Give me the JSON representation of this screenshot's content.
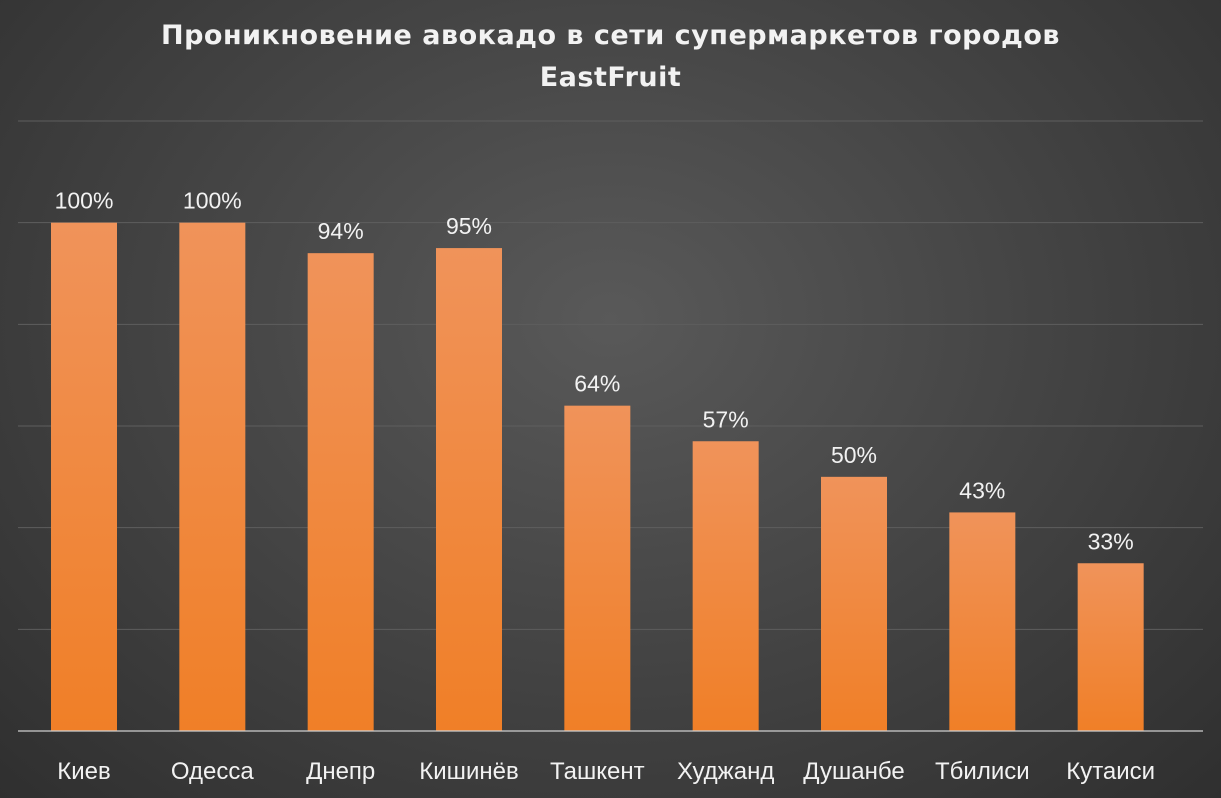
{
  "chart_data": {
    "type": "bar",
    "title": "Проникновение авокадо в сети супермаркетов городов",
    "subtitle": "EastFruit",
    "categories": [
      "Киев",
      "Одесса",
      "Днепр",
      "Кишинёв",
      "Ташкент",
      "Худжанд",
      "Душанбе",
      "Тбилиси",
      "Кутаиси"
    ],
    "values": [
      100,
      100,
      94,
      95,
      64,
      57,
      50,
      43,
      33
    ],
    "data_labels": [
      "100%",
      "100%",
      "94%",
      "95%",
      "64%",
      "57%",
      "50%",
      "43%",
      "33%"
    ],
    "unit": "%",
    "ylim": [
      0,
      120
    ],
    "y_gridline_step": 20,
    "grid": true,
    "bar_color": "#f07f27",
    "bar_color_light": "#f0935a",
    "xlabel": "",
    "ylabel": ""
  }
}
